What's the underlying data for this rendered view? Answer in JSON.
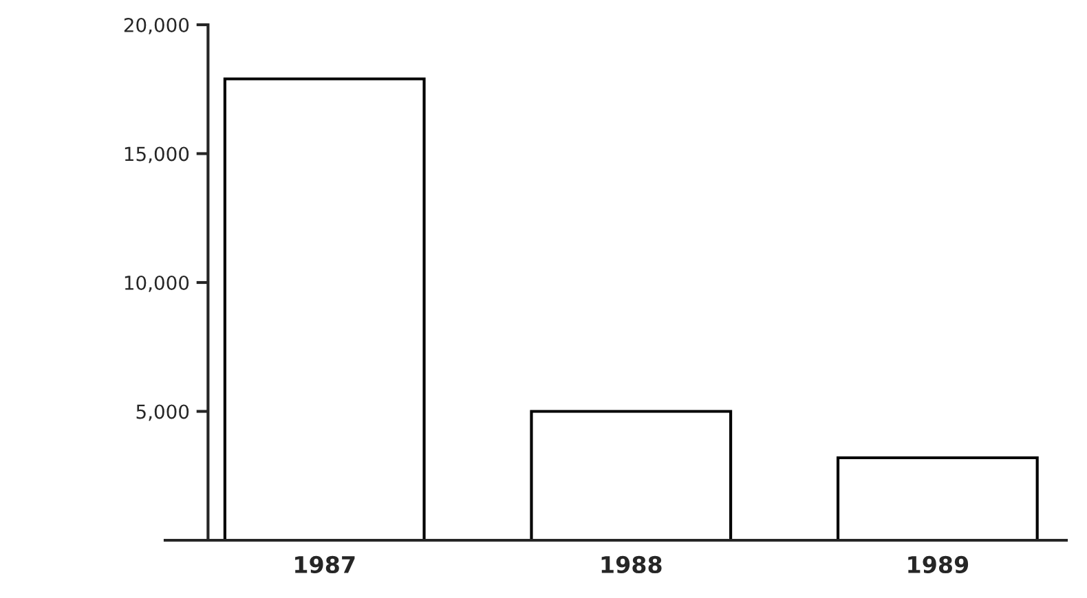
{
  "chart_data": {
    "type": "bar",
    "categories": [
      "1987",
      "1988",
      "1989"
    ],
    "values": [
      17900,
      5000,
      3200
    ],
    "color": "#ffffff",
    "ylim": [
      0,
      20000
    ],
    "yticks": [
      {
        "value": 5000,
        "label": "5,000"
      },
      {
        "value": 10000,
        "label": "10,000"
      },
      {
        "value": 15000,
        "label": "15,000"
      },
      {
        "value": 20000,
        "label": "20,000"
      }
    ],
    "grid": false,
    "legend": false
  }
}
